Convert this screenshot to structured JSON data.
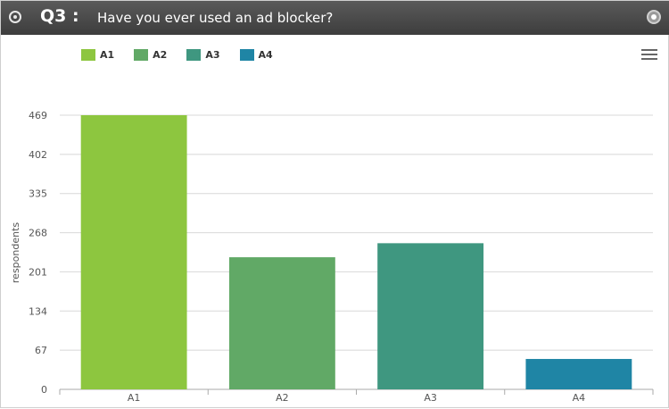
{
  "header": {
    "question_number": "Q3 :",
    "question_text": "Have you ever used an ad blocker?"
  },
  "legend": [
    {
      "label": "A1",
      "color": "#8dc63f"
    },
    {
      "label": "A2",
      "color": "#61a966"
    },
    {
      "label": "A3",
      "color": "#3f9780"
    },
    {
      "label": "A4",
      "color": "#1f85a5"
    }
  ],
  "chart_data": {
    "type": "bar",
    "categories": [
      "A1",
      "A2",
      "A3",
      "A4"
    ],
    "values": [
      469,
      226,
      250,
      52
    ],
    "colors": [
      "#8dc63f",
      "#61a966",
      "#3f9780",
      "#1f85a5"
    ],
    "ylabel": "respondents",
    "xlabel": "",
    "ylim": [
      0,
      469
    ],
    "yticks": [
      0,
      67,
      134,
      201,
      268,
      335,
      402,
      469
    ],
    "grid": true,
    "legend_position": "top-left"
  }
}
